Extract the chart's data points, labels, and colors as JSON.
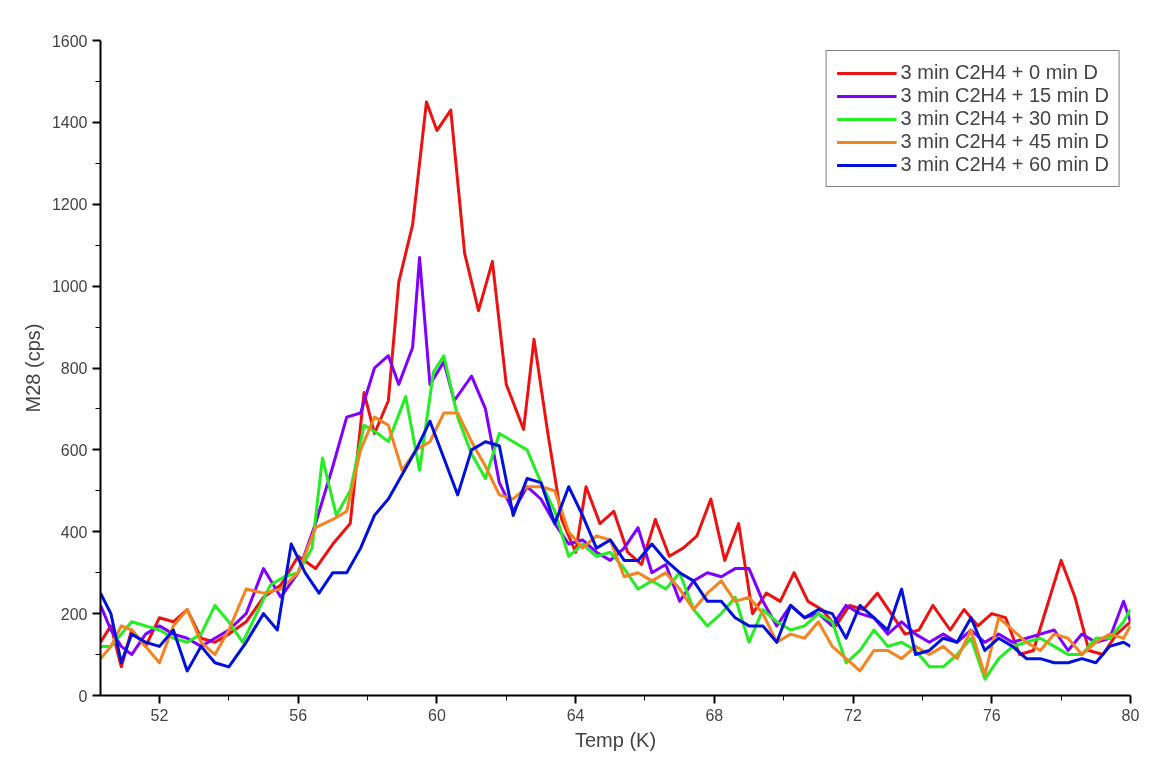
{
  "chart_data": {
    "type": "line",
    "xlabel": "Temp (K)",
    "ylabel": "M28 (cps)",
    "xlim": [
      50.3,
      80
    ],
    "xticks": [
      52,
      56,
      60,
      64,
      68,
      72,
      76,
      80
    ],
    "ylim": [
      0,
      1600
    ],
    "yticks": [
      0,
      200,
      400,
      600,
      800,
      1000,
      1200,
      1400,
      1600
    ],
    "grid": false,
    "legend": "top right",
    "marker": "none",
    "line_style": "solid",
    "series": [
      {
        "name": "3 min C2H4 + 0 min D",
        "color": "#ee1111",
        "x": [
          50.3,
          50.6,
          50.9,
          51.2,
          51.6,
          52,
          52.4,
          52.8,
          53.2,
          53.6,
          54,
          54.5,
          55,
          55.5,
          56,
          56.5,
          57,
          57.5,
          57.9,
          58.2,
          58.6,
          58.9,
          59.3,
          59.7,
          60,
          60.4,
          60.8,
          61.2,
          61.6,
          62,
          62.5,
          62.8,
          63.2,
          63.6,
          64,
          64.3,
          64.7,
          65.1,
          65.5,
          65.9,
          66.3,
          66.7,
          67.1,
          67.5,
          67.9,
          68.3,
          68.7,
          69.1,
          69.5,
          69.9,
          70.3,
          70.7,
          71.1,
          71.5,
          71.9,
          72.3,
          72.7,
          73.1,
          73.5,
          73.9,
          74.3,
          74.8,
          75.2,
          75.6,
          76,
          76.4,
          76.8,
          77.2,
          77.6,
          78,
          78.4,
          78.8,
          79.2,
          79.6,
          80
        ],
        "values": [
          130,
          170,
          70,
          160,
          120,
          190,
          180,
          210,
          140,
          130,
          150,
          180,
          240,
          270,
          340,
          310,
          370,
          420,
          740,
          640,
          720,
          1010,
          1150,
          1450,
          1380,
          1430,
          1080,
          940,
          1060,
          760,
          650,
          870,
          640,
          430,
          350,
          510,
          420,
          450,
          350,
          320,
          430,
          340,
          360,
          390,
          480,
          330,
          420,
          200,
          250,
          230,
          300,
          230,
          210,
          170,
          220,
          210,
          250,
          200,
          150,
          160,
          220,
          160,
          210,
          170,
          200,
          190,
          100,
          110,
          220,
          330,
          240,
          110,
          100,
          150,
          180
        ]
      },
      {
        "name": "3 min C2H4 + 15 min D",
        "color": "#8000ff",
        "x": [
          50.3,
          50.6,
          50.9,
          51.2,
          51.6,
          52,
          52.4,
          52.8,
          53.2,
          53.6,
          54,
          54.5,
          55,
          55.5,
          56,
          56.5,
          57,
          57.4,
          57.8,
          58.2,
          58.6,
          58.9,
          59.3,
          59.5,
          59.8,
          60.2,
          60.5,
          61,
          61.4,
          61.8,
          62.2,
          62.6,
          63,
          63.4,
          63.8,
          64.2,
          64.6,
          65,
          65.4,
          65.8,
          66.2,
          66.6,
          67,
          67.4,
          67.8,
          68.2,
          68.6,
          69,
          69.4,
          69.8,
          70.2,
          70.6,
          71,
          71.4,
          71.8,
          72.2,
          72.6,
          73,
          73.4,
          73.8,
          74.2,
          74.6,
          75,
          75.4,
          75.8,
          76.2,
          76.6,
          77,
          77.4,
          77.8,
          78.2,
          78.6,
          79,
          79.4,
          79.8,
          80
        ],
        "values": [
          220,
          160,
          120,
          100,
          150,
          170,
          150,
          140,
          120,
          140,
          160,
          200,
          310,
          240,
          300,
          420,
          560,
          680,
          690,
          800,
          830,
          760,
          850,
          1070,
          760,
          815,
          720,
          780,
          700,
          520,
          450,
          510,
          480,
          420,
          370,
          380,
          350,
          330,
          360,
          410,
          300,
          320,
          230,
          280,
          300,
          290,
          310,
          310,
          230,
          170,
          220,
          190,
          200,
          170,
          220,
          200,
          190,
          150,
          180,
          150,
          130,
          150,
          130,
          160,
          130,
          150,
          130,
          140,
          150,
          160,
          110,
          150,
          130,
          140,
          230,
          180
        ]
      },
      {
        "name": "3 min C2H4 + 30 min D",
        "color": "#22ee22",
        "x": [
          50.3,
          50.6,
          50.9,
          51.2,
          51.6,
          52,
          52.4,
          52.8,
          53.2,
          53.6,
          54,
          54.4,
          54.8,
          55.2,
          55.6,
          56,
          56.4,
          56.7,
          57.1,
          57.5,
          57.9,
          58.3,
          58.6,
          59.1,
          59.5,
          59.9,
          60.2,
          60.6,
          61,
          61.4,
          61.8,
          62.2,
          62.6,
          63,
          63.4,
          63.8,
          64.2,
          64.6,
          65,
          65.4,
          65.8,
          66.2,
          66.6,
          67,
          67.4,
          67.8,
          68.2,
          68.6,
          69,
          69.4,
          69.8,
          70.2,
          70.6,
          71,
          71.4,
          71.8,
          72.2,
          72.6,
          73,
          73.4,
          73.8,
          74.2,
          74.6,
          75,
          75.4,
          75.8,
          76.2,
          76.6,
          77,
          77.4,
          77.8,
          78.2,
          78.6,
          79,
          79.4,
          79.8,
          80
        ],
        "values": [
          120,
          120,
          150,
          180,
          170,
          160,
          140,
          130,
          150,
          220,
          180,
          130,
          200,
          270,
          290,
          300,
          360,
          580,
          440,
          500,
          660,
          640,
          620,
          730,
          550,
          790,
          830,
          680,
          590,
          530,
          640,
          620,
          600,
          520,
          450,
          340,
          370,
          340,
          350,
          310,
          260,
          280,
          260,
          300,
          210,
          170,
          200,
          240,
          130,
          210,
          180,
          160,
          170,
          200,
          180,
          80,
          110,
          160,
          120,
          130,
          110,
          70,
          70,
          100,
          140,
          40,
          90,
          120,
          130,
          140,
          120,
          100,
          100,
          140,
          140,
          180,
          210
        ]
      },
      {
        "name": "3 min C2H4 + 45 min D",
        "color": "#f5831f",
        "x": [
          50.3,
          50.6,
          50.9,
          51.2,
          51.6,
          52,
          52.4,
          52.8,
          53.2,
          53.6,
          54,
          54.5,
          55,
          55.5,
          56,
          56.5,
          57,
          57.4,
          57.8,
          58.2,
          58.6,
          59,
          59.4,
          59.8,
          60.2,
          60.6,
          61,
          61.4,
          61.8,
          62.2,
          62.6,
          63,
          63.4,
          63.8,
          64.2,
          64.6,
          65,
          65.4,
          65.8,
          66.2,
          66.6,
          67,
          67.4,
          67.8,
          68.2,
          68.6,
          69,
          69.4,
          69.8,
          70.2,
          70.6,
          71,
          71.4,
          71.8,
          72.2,
          72.6,
          73,
          73.4,
          73.8,
          74.2,
          74.6,
          75,
          75.4,
          75.8,
          76.2,
          76.6,
          77,
          77.4,
          77.8,
          78.2,
          78.6,
          79,
          79.4,
          79.8,
          80
        ],
        "values": [
          90,
          120,
          170,
          160,
          120,
          80,
          170,
          210,
          130,
          100,
          160,
          260,
          250,
          260,
          300,
          410,
          430,
          450,
          600,
          680,
          660,
          550,
          600,
          620,
          690,
          690,
          620,
          560,
          490,
          480,
          510,
          510,
          500,
          400,
          360,
          390,
          380,
          290,
          300,
          280,
          300,
          260,
          210,
          250,
          280,
          230,
          240,
          200,
          130,
          150,
          140,
          180,
          120,
          90,
          60,
          110,
          110,
          90,
          120,
          100,
          120,
          90,
          160,
          50,
          190,
          160,
          130,
          110,
          150,
          140,
          100,
          130,
          150,
          140,
          170
        ]
      },
      {
        "name": "3 min C2H4 + 60 min D",
        "color": "#0010dd",
        "x": [
          50.3,
          50.6,
          50.9,
          51.2,
          51.6,
          52,
          52.4,
          52.8,
          53.2,
          53.6,
          54,
          54.5,
          55,
          55.4,
          55.8,
          56.2,
          56.6,
          57,
          57.4,
          57.8,
          58.2,
          58.6,
          59,
          59.4,
          59.8,
          60.2,
          60.6,
          61,
          61.4,
          61.8,
          62.2,
          62.6,
          63,
          63.4,
          63.8,
          64.2,
          64.6,
          65,
          65.4,
          65.8,
          66.2,
          66.6,
          67,
          67.4,
          67.8,
          68.2,
          68.6,
          69,
          69.4,
          69.8,
          70.2,
          70.6,
          71,
          71.4,
          71.8,
          72.2,
          72.6,
          73,
          73.4,
          73.8,
          74.2,
          74.6,
          75,
          75.4,
          75.8,
          76.2,
          76.6,
          77,
          77.4,
          77.8,
          78.2,
          78.6,
          79,
          79.4,
          79.8,
          80
        ],
        "values": [
          250,
          200,
          80,
          150,
          130,
          120,
          160,
          60,
          120,
          80,
          70,
          130,
          200,
          160,
          370,
          300,
          250,
          300,
          300,
          360,
          440,
          480,
          540,
          600,
          670,
          580,
          490,
          600,
          620,
          610,
          440,
          530,
          520,
          420,
          510,
          440,
          360,
          380,
          330,
          330,
          370,
          330,
          300,
          280,
          230,
          230,
          190,
          170,
          170,
          130,
          220,
          190,
          210,
          200,
          140,
          220,
          190,
          160,
          260,
          100,
          110,
          140,
          130,
          190,
          110,
          140,
          120,
          90,
          90,
          80,
          80,
          90,
          80,
          120,
          130,
          120
        ]
      }
    ]
  }
}
